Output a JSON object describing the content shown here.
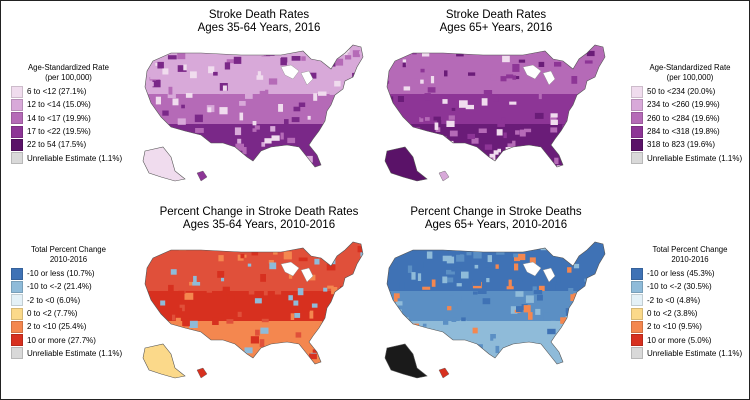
{
  "panels": [
    {
      "id": "top-left",
      "title_line1": "Stroke Death Rates",
      "title_line2": "Ages 35-64 Years, 2016",
      "legend": {
        "header_line1": "Age-Standardized Rate",
        "header_line2": "(per 100,000)",
        "items": [
          {
            "label": "6 to <12 (27.1%)",
            "color": "#f0dcee"
          },
          {
            "label": "12 to <14 (15.0%)",
            "color": "#d8a9d9"
          },
          {
            "label": "14 to <17 (19.9%)",
            "color": "#b56ab7"
          },
          {
            "label": "17 to <22 (19.5%)",
            "color": "#8d3596"
          },
          {
            "label": "22 to 54 (17.5%)",
            "color": "#5a1268"
          },
          {
            "label": "Unreliable Estimate (1.1%)",
            "color": "#d9d9d9"
          }
        ]
      },
      "map_colors": {
        "north": "#d8a9d9",
        "mid": "#b56ab7",
        "south": "#7a2888",
        "light": "#f0dcee",
        "alaska": "#f0dcee",
        "hawaii": "#8d3596"
      }
    },
    {
      "id": "top-right",
      "title_line1": "Stroke Death Rates",
      "title_line2": "Ages 65+ Years, 2016",
      "legend": {
        "header_line1": "Age-Standardized Rate",
        "header_line2": "(per 100,000)",
        "items": [
          {
            "label": "50 to <234 (20.0%)",
            "color": "#f0dcee"
          },
          {
            "label": "234 to <260 (19.9%)",
            "color": "#d8a9d9"
          },
          {
            "label": "260 to <284 (19.6%)",
            "color": "#b56ab7"
          },
          {
            "label": "284 to <318 (19.8%)",
            "color": "#8d3596"
          },
          {
            "label": "318 to 823 (19.6%)",
            "color": "#5a1268"
          },
          {
            "label": "Unreliable Estimate (1.1%)",
            "color": "#d9d9d9"
          }
        ]
      },
      "map_colors": {
        "north": "#b56ab7",
        "mid": "#8d3596",
        "south": "#6a1c78",
        "light": "#f0dcee",
        "alaska": "#5a1268",
        "hawaii": "#d8a9d9"
      }
    },
    {
      "id": "bottom-left",
      "title_line1": "Percent Change in Stroke Death Rates",
      "title_line2": "Ages 35-64 Years, 2010-2016",
      "legend": {
        "header_line1": "Total Percent Change",
        "header_line2": "2010-2016",
        "items": [
          {
            "label": "-10 or less (10.7%)",
            "color": "#3f72b5"
          },
          {
            "label": "-10 to <-2 (21.4%)",
            "color": "#8fbbd9"
          },
          {
            "label": "-2 to <0 (6.0%)",
            "color": "#e4f1f7"
          },
          {
            "label": "0 to <2 (7.7%)",
            "color": "#fbd98a"
          },
          {
            "label": "2 to <10 (25.4%)",
            "color": "#f4874f"
          },
          {
            "label": "10 or more (27.7%)",
            "color": "#d7301f"
          },
          {
            "label": "Unreliable Estimate (1.1%)",
            "color": "#d9d9d9"
          }
        ]
      },
      "map_colors": {
        "north": "#e0503a",
        "mid": "#d7301f",
        "south": "#f4874f",
        "light": "#8fbbd9",
        "alaska": "#fbd98a",
        "hawaii": "#d7301f"
      }
    },
    {
      "id": "bottom-right",
      "title_line1": "Percent Change in Stroke Deaths",
      "title_line2": "Ages 65+ Years, 2010-2016",
      "legend": {
        "header_line1": "Total Percent Change",
        "header_line2": "2010-2016",
        "items": [
          {
            "label": "-10 or less (45.3%)",
            "color": "#3f72b5"
          },
          {
            "label": "-10 to <-2 (30.5%)",
            "color": "#8fbbd9"
          },
          {
            "label": "-2 to <0 (4.8%)",
            "color": "#e4f1f7"
          },
          {
            "label": "0 to <2 (3.8%)",
            "color": "#fbd98a"
          },
          {
            "label": "2 to <10 (9.5%)",
            "color": "#f4874f"
          },
          {
            "label": "10 or more (5.0%)",
            "color": "#d7301f"
          },
          {
            "label": "Unreliable Estimate (1.1%)",
            "color": "#d9d9d9"
          }
        ]
      },
      "map_colors": {
        "north": "#3f72b5",
        "mid": "#5b8fc4",
        "south": "#8fbbd9",
        "light": "#f4874f",
        "alaska": "#1a1a1a",
        "hawaii": "#d7301f"
      }
    }
  ]
}
